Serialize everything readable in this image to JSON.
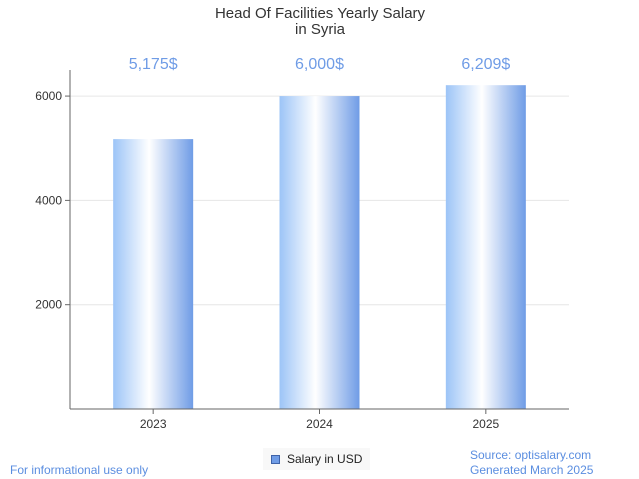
{
  "chart_data": {
    "type": "bar",
    "title_lines": [
      "Head Of Facilities Yearly Salary",
      "in Syria"
    ],
    "categories": [
      "2023",
      "2024",
      "2025"
    ],
    "series": [
      {
        "name": "Salary in USD",
        "values": [
          5175,
          6000,
          6209
        ],
        "data_labels": [
          "5,175$",
          "6,000$",
          "6,209$"
        ]
      }
    ],
    "xlabel": "",
    "ylabel": "",
    "ylim": [
      0,
      6500
    ],
    "yticks": [
      2000,
      4000,
      6000
    ],
    "grid": true,
    "legend_position": "bottom-center",
    "bar_color": "#6f9ce6"
  },
  "footer": {
    "left": "For informational use only",
    "source": "Source: optisalary.com",
    "generated": "Generated March 2025"
  }
}
